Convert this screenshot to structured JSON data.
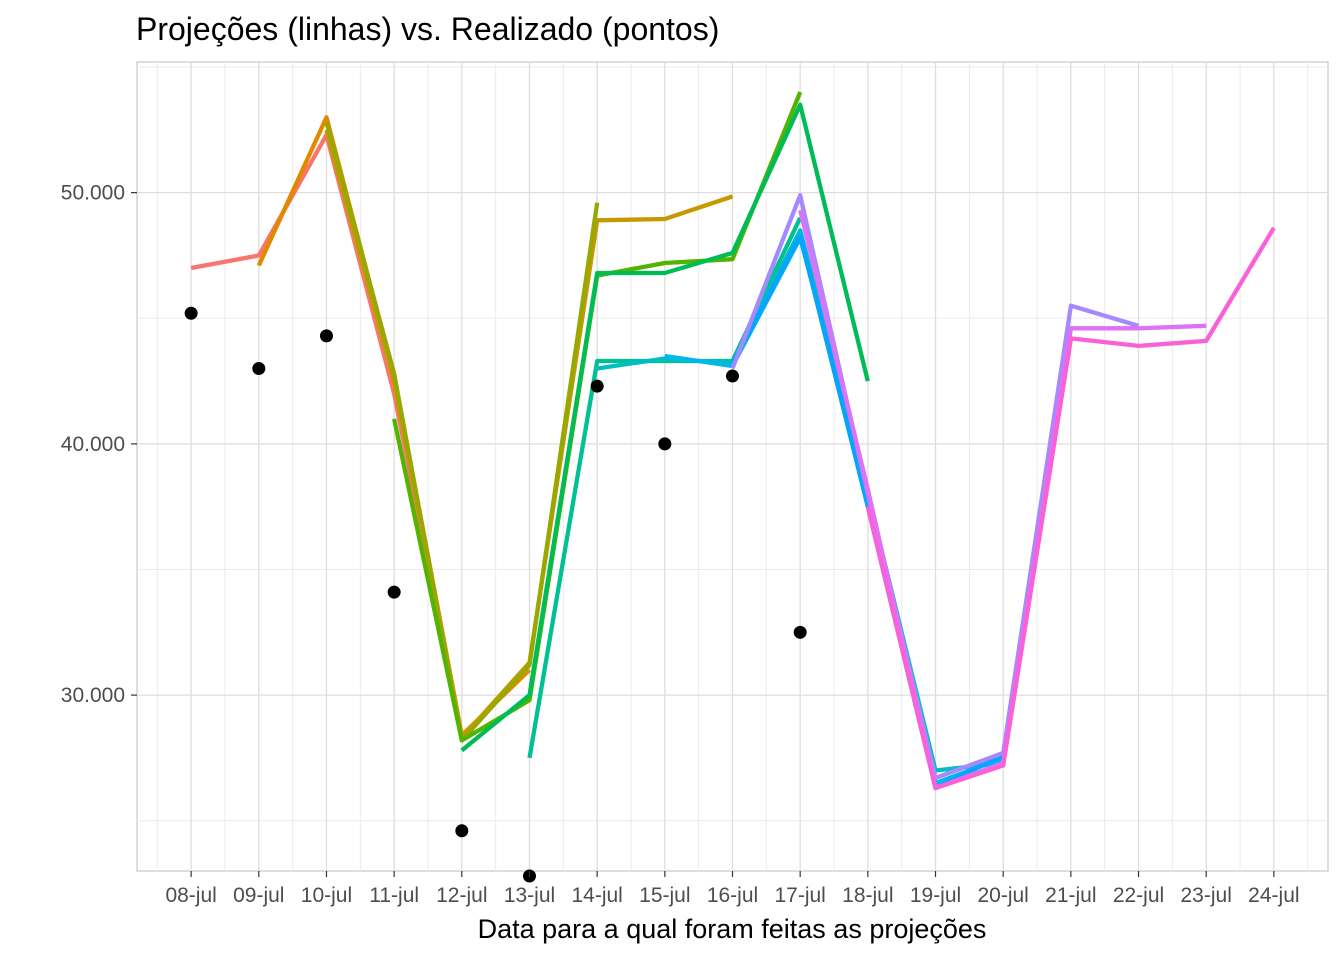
{
  "chart_data": {
    "type": "line",
    "title": "Projeções (linhas) vs. Realizado (pontos)",
    "xlabel": "Data para a qual foram feitas as projeções",
    "ylabel": "",
    "x_ticks": [
      "08-jul",
      "09-jul",
      "10-jul",
      "11-jul",
      "12-jul",
      "13-jul",
      "14-jul",
      "15-jul",
      "16-jul",
      "17-jul",
      "18-jul",
      "19-jul",
      "20-jul",
      "21-jul",
      "22-jul",
      "23-jul",
      "24-jul"
    ],
    "y_ticks": [
      30000,
      40000,
      50000
    ],
    "y_tick_labels": [
      "30.000",
      "40.000",
      "50.000"
    ],
    "xlim": [
      -0.8,
      16.8
    ],
    "ylim": [
      23000,
      55200
    ],
    "grid": true,
    "legend": "none",
    "series": [
      {
        "color": "#F8766D",
        "x": [
          0,
          1,
          2,
          3,
          4
        ],
        "values": [
          47000,
          47500,
          52300,
          42000,
          28300
        ]
      },
      {
        "color": "#E38900",
        "x": [
          1,
          2,
          3,
          4,
          5
        ],
        "values": [
          47100,
          53000,
          42700,
          28400,
          31000
        ]
      },
      {
        "color": "#C49A00",
        "x": [
          2,
          3,
          4,
          5,
          6,
          7,
          8
        ],
        "values": [
          52500,
          42500,
          28300,
          31300,
          48900,
          48950,
          49850
        ]
      },
      {
        "color": "#99A800",
        "x": [
          2,
          3,
          4,
          5,
          6
        ],
        "values": [
          52800,
          42800,
          28200,
          31200,
          49600
        ]
      },
      {
        "color": "#53B400",
        "x": [
          3,
          4,
          5,
          6,
          7,
          8,
          9
        ],
        "values": [
          41000,
          28200,
          29800,
          46700,
          47200,
          47350,
          54000
        ]
      },
      {
        "color": "#00BC56",
        "x": [
          4,
          5,
          6,
          7,
          8,
          9,
          10
        ],
        "values": [
          27800,
          30000,
          46800,
          46800,
          47600,
          53500,
          42500
        ]
      },
      {
        "color": "#00C094",
        "x": [
          5,
          6,
          7,
          8,
          9
        ],
        "values": [
          27500,
          43300,
          43300,
          43300,
          49000
        ]
      },
      {
        "color": "#00BFC4",
        "x": [
          6,
          7,
          8,
          9,
          10,
          11,
          12
        ],
        "values": [
          43000,
          43400,
          43200,
          48500,
          38000,
          27000,
          27300
        ]
      },
      {
        "color": "#00B6EB",
        "x": [
          7,
          8,
          9,
          10,
          11,
          12
        ],
        "values": [
          43500,
          43100,
          48200,
          38000,
          26500,
          27500
        ]
      },
      {
        "color": "#06A4FF",
        "x": [
          8,
          9,
          10,
          11,
          12,
          13
        ],
        "values": [
          43200,
          48300,
          37500,
          26300,
          27600,
          44200
        ]
      },
      {
        "color": "#A58AFF",
        "x": [
          8,
          9,
          10,
          11,
          12,
          13,
          14
        ],
        "values": [
          43000,
          49900,
          38000,
          26700,
          27700,
          45500,
          44700
        ]
      },
      {
        "color": "#DF70F8",
        "x": [
          9,
          10,
          11,
          12,
          13,
          14,
          15
        ],
        "values": [
          49300,
          38200,
          26300,
          27300,
          44600,
          44600,
          44700
        ]
      },
      {
        "color": "#FB61D7",
        "x": [
          10,
          11,
          12,
          13,
          14,
          15,
          16
        ],
        "values": [
          37500,
          26300,
          27200,
          44200,
          43900,
          44100,
          48600
        ]
      }
    ],
    "actual": {
      "color": "#000000",
      "x": [
        0,
        1,
        2,
        3,
        4,
        5,
        6,
        7,
        8,
        9
      ],
      "values": [
        45200,
        43000,
        44300,
        34100,
        24600,
        22800,
        42300,
        40000,
        42700,
        32500
      ]
    }
  }
}
